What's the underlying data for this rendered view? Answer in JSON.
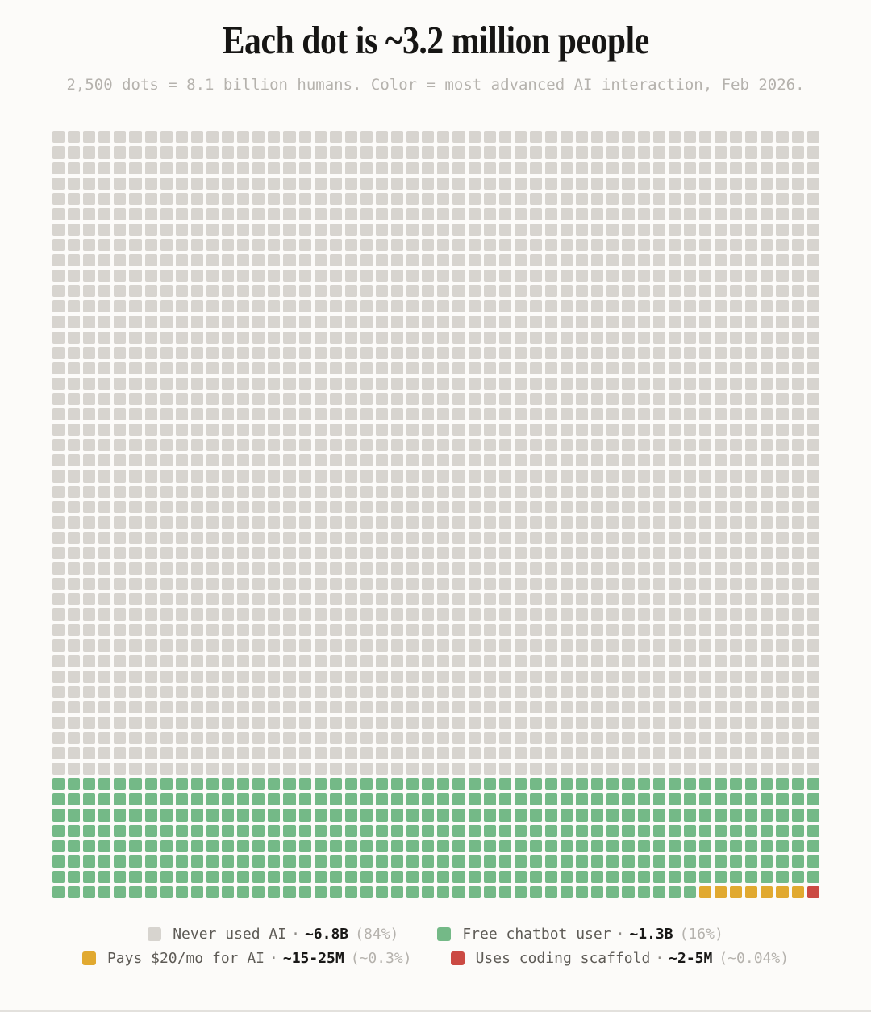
{
  "header": {
    "title": "Each dot is ~3.2 million people",
    "subtitle": "2,500 dots = 8.1 billion humans. Color = most advanced AI interaction, Feb 2026."
  },
  "chart_data": {
    "type": "waffle",
    "title": "Each dot is ~3.2 million people",
    "subtitle": "2,500 dots = 8.1 billion humans. Color = most advanced AI interaction, Feb 2026.",
    "columns": 50,
    "rows": 50,
    "total_dots": 2500,
    "people_per_dot": "~3.2 million",
    "total_people": "8.1 billion",
    "as_of": "Feb 2026",
    "legend_position": "bottom",
    "series": [
      {
        "name": "Never used AI",
        "value": "~6.8B",
        "percent": "(84%)",
        "dots": 2100,
        "color": "#d7d4cf"
      },
      {
        "name": "Free chatbot user",
        "value": "~1.3B",
        "percent": "(16%)",
        "dots": 392,
        "color": "#74b987"
      },
      {
        "name": "Pays $20/mo for AI",
        "value": "~15-25M",
        "percent": "(~0.3%)",
        "dots": 7,
        "color": "#e1a930"
      },
      {
        "name": "Uses coding scaffold",
        "value": "~2-5M",
        "percent": "(~0.04%)",
        "dots": 1,
        "color": "#cb4a43"
      }
    ]
  },
  "legend": {
    "separator": "·"
  }
}
